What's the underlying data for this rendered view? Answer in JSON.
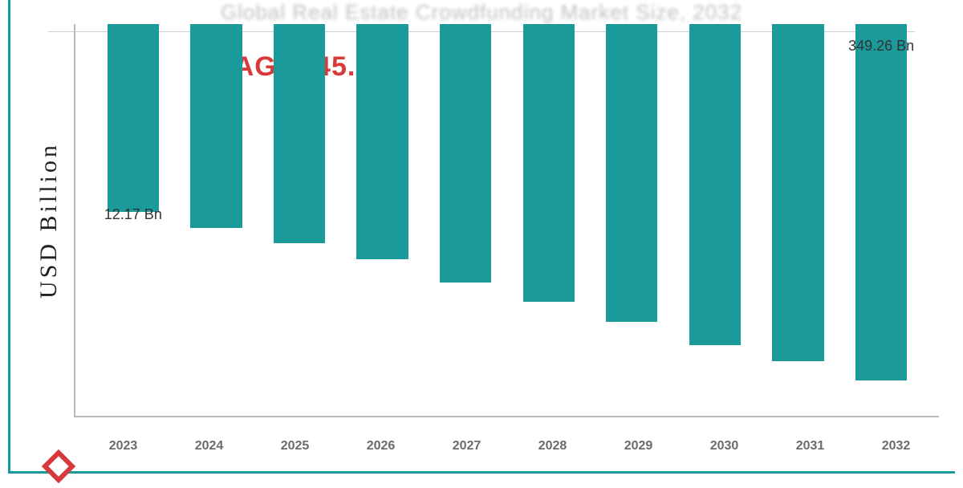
{
  "title": "Global Real Estate Crowdfunding Market Size, 2032",
  "cagr": {
    "text": "CAGR: 45.2%",
    "color": "#d73a3a",
    "fontsize": 34,
    "left_pct": 16,
    "top_pct": 7
  },
  "frame_border_color": "#1a9a9a",
  "chart": {
    "type": "bar",
    "ylabel": "USD Billion",
    "ylabel_fontsize": 30,
    "ylabel_color": "#222222",
    "bar_color": "#1a9a9a",
    "bar_width_pct": 62,
    "axis_color": "#b9b9b9",
    "background_color": "#ffffff",
    "value_label_color": "#333333",
    "value_label_fontsize": 18,
    "xtick_color": "#6b6b6b",
    "xtick_fontsize": 16,
    "xtick_fontweight": "700",
    "ylim": [
      0,
      100
    ],
    "categories": [
      "2023",
      "2024",
      "2025",
      "2026",
      "2027",
      "2028",
      "2029",
      "2030",
      "2031",
      "2032"
    ],
    "heights_pct": [
      48,
      52,
      56,
      60,
      66,
      71,
      76,
      82,
      86,
      91
    ],
    "value_labels": {
      "0": "12.17 Bn",
      "9": "349.26 Bn"
    }
  },
  "logo_colors": {
    "outer": "#d73a3a",
    "accent": "#1a9a9a"
  }
}
